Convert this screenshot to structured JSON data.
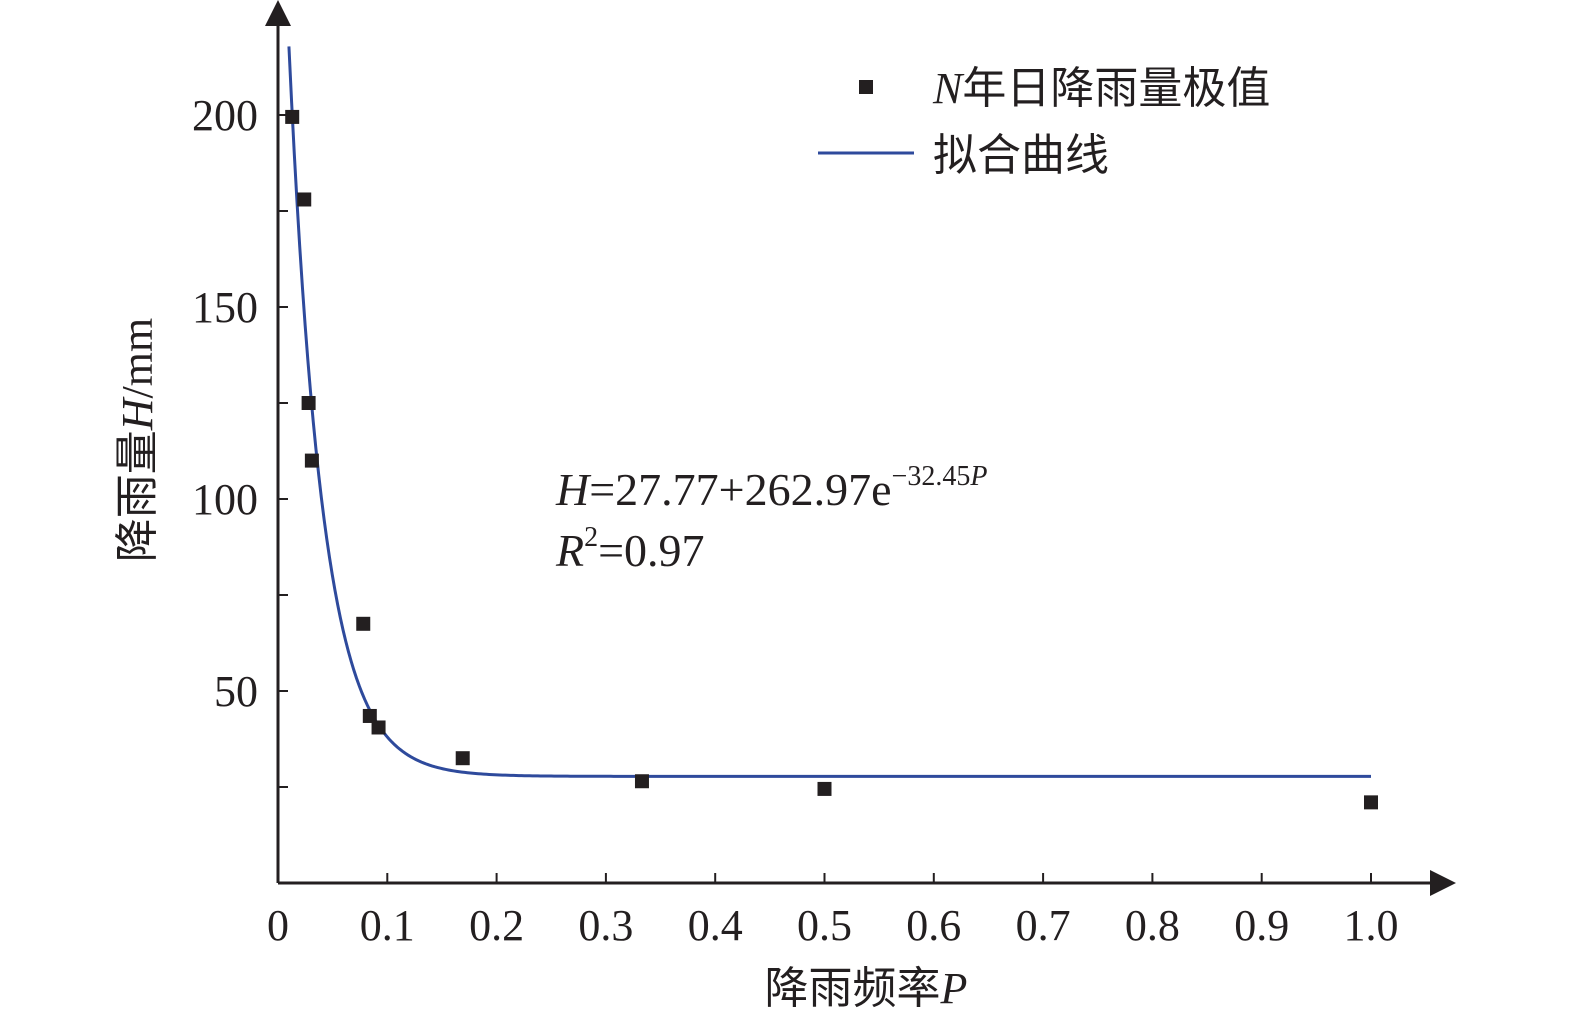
{
  "chart_data": {
    "type": "scatter",
    "xlabel": {
      "text": "降雨频率",
      "var": "P"
    },
    "ylabel": {
      "text": "降雨量",
      "var": "H",
      "unit": "/mm"
    },
    "xlim": [
      0,
      1.0
    ],
    "ylim": [
      0,
      220
    ],
    "x_ticks": [
      0,
      0.1,
      0.2,
      0.3,
      0.4,
      0.5,
      0.6,
      0.7,
      0.8,
      0.9,
      1.0
    ],
    "x_tick_labels": [
      "0",
      "0.1",
      "0.2",
      "0.3",
      "0.4",
      "0.5",
      "0.6",
      "0.7",
      "0.8",
      "0.9",
      "1.0"
    ],
    "y_ticks": [
      25,
      50,
      75,
      100,
      125,
      150,
      175,
      200
    ],
    "y_tick_labels": [
      "",
      "50",
      "",
      "100",
      "",
      "150",
      "",
      "200"
    ],
    "grid": false,
    "legend_position": "top-right",
    "series": [
      {
        "name_var": "N",
        "name": "年日降雨量极值",
        "type": "scatter",
        "marker": "square",
        "color": "#231f20",
        "x": [
          0.013,
          0.024,
          0.028,
          0.031,
          0.078,
          0.084,
          0.092,
          0.169,
          0.333,
          0.5,
          1.0
        ],
        "y": [
          199.5,
          178,
          125,
          110,
          67.5,
          43.5,
          40.5,
          32.5,
          26.5,
          24.5,
          21
        ]
      },
      {
        "name": "拟合曲线",
        "type": "line",
        "color": "#2e4a9c",
        "function": {
          "a": 27.77,
          "b": 262.97,
          "k": -32.45
        },
        "domain": [
          0.01,
          1.0
        ]
      }
    ],
    "annotations": {
      "equation": {
        "lhs": "H",
        "rhs": "=27.77+262.97e",
        "exp_num": "−32.45",
        "exp_var": "P"
      },
      "r2": {
        "var": "R",
        "sup": "2",
        "rhs": "=0.97"
      }
    }
  }
}
